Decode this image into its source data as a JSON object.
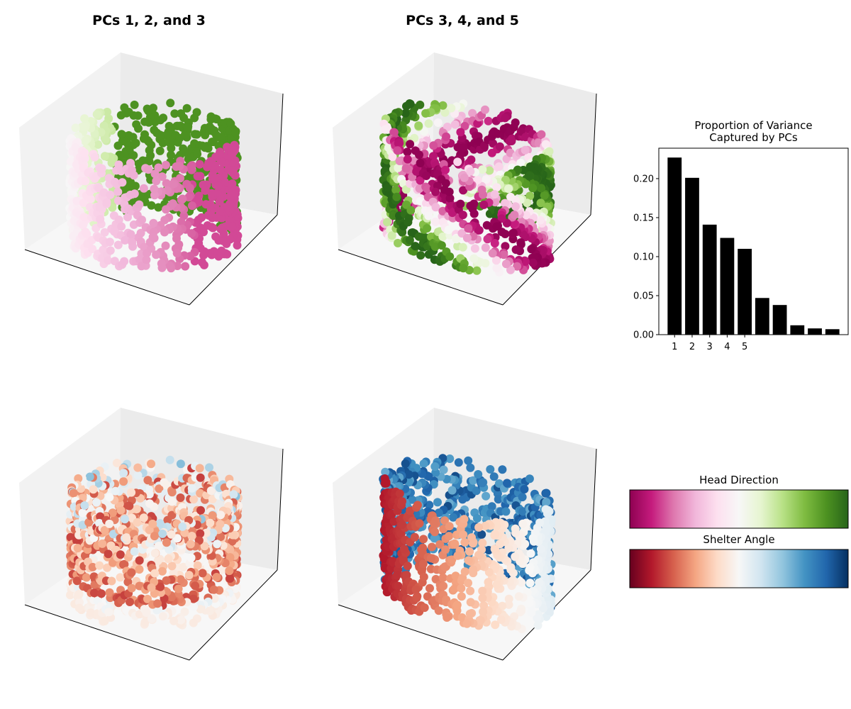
{
  "panels": [
    {
      "title": "PCs 1, 2, and 3"
    },
    {
      "title": "PCs 3, 4, and 5"
    }
  ],
  "chart_data": {
    "type": "bar",
    "title": "Proportion of Variance\nCaptured by PCs",
    "categories": [
      "1",
      "2",
      "3",
      "4",
      "5",
      null,
      null,
      null,
      null,
      null
    ],
    "values": [
      0.227,
      0.201,
      0.141,
      0.124,
      0.11,
      0.047,
      0.038,
      0.012,
      0.008,
      0.007
    ],
    "color": "#000000",
    "ylim": [
      0,
      0.239
    ],
    "yticks": [
      {
        "value": 0,
        "label": "0.00"
      },
      {
        "value": 0.05,
        "label": "0.05"
      },
      {
        "value": 0.1,
        "label": "0.10"
      },
      {
        "value": 0.15,
        "label": "0.15"
      },
      {
        "value": 0.2,
        "label": "0.20"
      }
    ]
  },
  "colorbars": [
    {
      "label": "Head Direction",
      "colors": [
        "#8e0152",
        "#c51b7d",
        "#de77ae",
        "#f1b6da",
        "#fde0ef",
        "#f7f7f7",
        "#e6f5d0",
        "#b8e186",
        "#7fbc41",
        "#4d9221",
        "#276419"
      ]
    },
    {
      "label": "Shelter Angle",
      "colors": [
        "#67001f",
        "#b2182b",
        "#d6604d",
        "#f4a582",
        "#fddbc7",
        "#f7f7f7",
        "#d1e5f0",
        "#92c5de",
        "#4393c3",
        "#2166ac",
        "#053061"
      ]
    }
  ]
}
